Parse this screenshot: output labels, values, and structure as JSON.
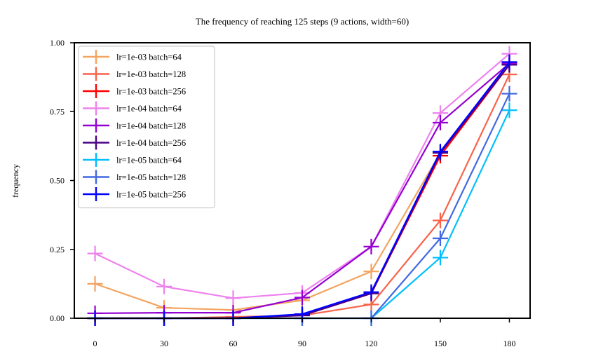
{
  "chart_data": {
    "type": "line",
    "title": "The frequency of reaching 125 steps (9 actions, width=60)",
    "xlabel": "",
    "ylabel": "frequency",
    "x": [
      0,
      30,
      60,
      90,
      120,
      150,
      180
    ],
    "xticks": [
      "0",
      "30",
      "60",
      "90",
      "120",
      "150",
      "180"
    ],
    "yticks": [
      "0.00",
      "0.25",
      "0.50",
      "0.75",
      "1.00"
    ],
    "xlim": [
      -9,
      189
    ],
    "ylim": [
      0,
      1
    ],
    "grid": false,
    "legend_position": "upper-left",
    "series": [
      {
        "name": "lr=1e-03 batch=64",
        "color": "#f4a460",
        "values": [
          0.125,
          0.038,
          0.03,
          0.065,
          0.17,
          0.6,
          0.93
        ]
      },
      {
        "name": "lr=1e-03 batch=128",
        "color": "#f8634a",
        "values": [
          0.0,
          0.0,
          0.005,
          0.01,
          0.05,
          0.355,
          0.885
        ]
      },
      {
        "name": "lr=1e-03 batch=256",
        "color": "#ff0000",
        "values": [
          0.0,
          0.0,
          0.0,
          0.012,
          0.09,
          0.59,
          0.92
        ]
      },
      {
        "name": "lr=1e-04 batch=64",
        "color": "#ee82ee",
        "values": [
          0.235,
          0.115,
          0.073,
          0.092,
          0.26,
          0.745,
          0.96
        ]
      },
      {
        "name": "lr=1e-04 batch=128",
        "color": "#9400d3",
        "values": [
          0.018,
          0.02,
          0.02,
          0.075,
          0.26,
          0.71,
          0.925
        ]
      },
      {
        "name": "lr=1e-04 batch=256",
        "color": "#4b0082",
        "values": [
          0.0,
          0.0,
          0.0,
          0.01,
          0.09,
          0.6,
          0.92
        ]
      },
      {
        "name": "lr=1e-05 batch=64",
        "color": "#00bfff",
        "values": [
          0.0,
          0.0,
          0.0,
          0.0,
          0.0,
          0.22,
          0.755
        ]
      },
      {
        "name": "lr=1e-05 batch=128",
        "color": "#4169e1",
        "values": [
          0.0,
          0.0,
          0.0,
          0.0,
          0.0,
          0.29,
          0.815
        ]
      },
      {
        "name": "lr=1e-05 batch=256",
        "color": "#0000ff",
        "values": [
          0.0,
          0.0,
          0.0,
          0.015,
          0.095,
          0.605,
          0.93
        ]
      }
    ]
  }
}
